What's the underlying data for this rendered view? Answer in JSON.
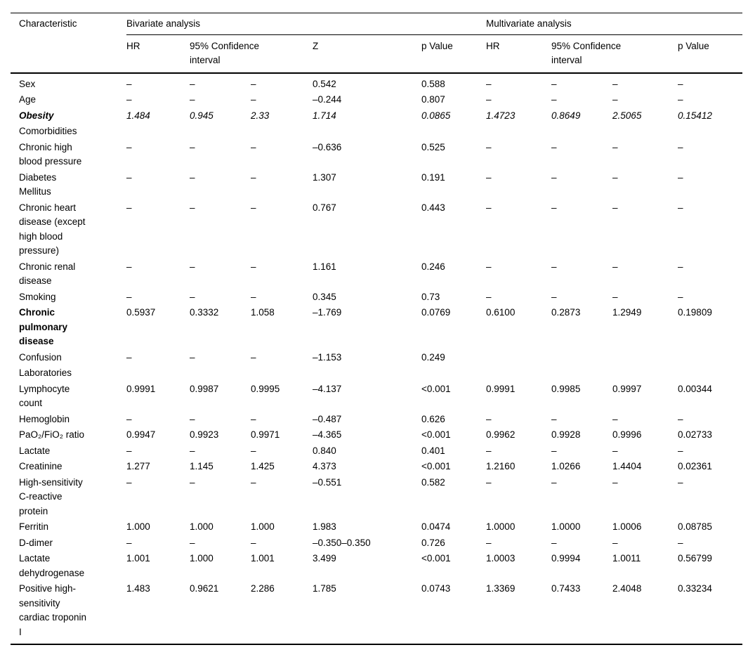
{
  "table": {
    "header": {
      "characteristic": "Characteristic",
      "group_bivariate": "Bivariate analysis",
      "group_multivariate": "Multivariate analysis",
      "sub": {
        "hr_bivariate": "HR",
        "ci_bivariate": "95% Confidence\ninterval",
        "z": "Z",
        "p_bivariate": "p Value",
        "hr_multivariate": "HR",
        "ci_multivariate": "95% Confidence\ninterval",
        "p_multivariate": "p Value"
      }
    },
    "rows": [
      {
        "label": "Sex",
        "style": "normal",
        "cells": [
          "–",
          "–",
          "–",
          "0.542",
          "0.588",
          "–",
          "–",
          "–",
          "–"
        ]
      },
      {
        "label": "Age",
        "style": "normal",
        "cells": [
          "–",
          "–",
          "–",
          "–0.244",
          "0.807",
          "–",
          "–",
          "–",
          "–"
        ]
      },
      {
        "label": "Obesity",
        "style": "bold-italic",
        "cells": [
          "1.484",
          "0.945",
          "2.33",
          "1.714",
          "0.0865",
          "1.4723",
          "0.8649",
          "2.5065",
          "0.15412"
        ]
      },
      {
        "label": "Comorbidities",
        "style": "section",
        "cells": [
          "",
          "",
          "",
          "",
          "",
          "",
          "",
          "",
          ""
        ]
      },
      {
        "label": "Chronic high\nblood pressure",
        "style": "normal",
        "cells": [
          "–",
          "–",
          "–",
          "–0.636",
          "0.525",
          "–",
          "–",
          "–",
          "–"
        ]
      },
      {
        "label": "Diabetes\nMellitus",
        "style": "normal",
        "cells": [
          "–",
          "–",
          "–",
          "1.307",
          "0.191",
          "–",
          "–",
          "–",
          "–"
        ]
      },
      {
        "label": "Chronic heart\ndisease (except\nhigh blood\npressure)",
        "style": "normal",
        "cells": [
          "–",
          "–",
          "–",
          "0.767",
          "0.443",
          "–",
          "–",
          "–",
          "–"
        ]
      },
      {
        "label": "Chronic renal\ndisease",
        "style": "normal",
        "cells": [
          "–",
          "–",
          "–",
          "1.161",
          "0.246",
          "–",
          "–",
          "–",
          "–"
        ]
      },
      {
        "label": "Smoking",
        "style": "normal",
        "cells": [
          "–",
          "–",
          "–",
          "0.345",
          "0.73",
          "–",
          "–",
          "–",
          "–"
        ]
      },
      {
        "label": "Chronic\npulmonary\ndisease",
        "style": "bold",
        "cells": [
          "0.5937",
          "0.3332",
          "1.058",
          "–1.769",
          "0.0769",
          "0.6100",
          "0.2873",
          "1.2949",
          "0.19809"
        ]
      },
      {
        "label": "Confusion",
        "style": "normal",
        "cells": [
          "–",
          "–",
          "–",
          "–1.153",
          "0.249",
          "",
          "",
          "",
          ""
        ]
      },
      {
        "label": "Laboratories",
        "style": "section",
        "cells": [
          "",
          "",
          "",
          "",
          "",
          "",
          "",
          "",
          ""
        ]
      },
      {
        "label": "Lymphocyte\ncount",
        "style": "normal",
        "cells": [
          "0.9991",
          "0.9987",
          "0.9995",
          "–4.137",
          "<0.001",
          "0.9991",
          "0.9985",
          "0.9997",
          "0.00344"
        ]
      },
      {
        "label": "Hemoglobin",
        "style": "normal",
        "cells": [
          "–",
          "–",
          "–",
          "–0.487",
          "0.626",
          "–",
          "–",
          "–",
          "–"
        ]
      },
      {
        "label": "PaO₂/FiO₂ ratio",
        "style": "normal",
        "cells": [
          "0.9947",
          "0.9923",
          "0.9971",
          "–4.365",
          "<0.001",
          "0.9962",
          "0.9928",
          "0.9996",
          "0.02733"
        ]
      },
      {
        "label": "Lactate",
        "style": "normal",
        "cells": [
          "–",
          "–",
          "–",
          "0.840",
          "0.401",
          "–",
          "–",
          "–",
          "–"
        ]
      },
      {
        "label": "Creatinine",
        "style": "normal",
        "cells": [
          "1.277",
          "1.145",
          "1.425",
          "4.373",
          "<0.001",
          "1.2160",
          "1.0266",
          "1.4404",
          "0.02361"
        ]
      },
      {
        "label": "High-sensitivity\nC-reactive\nprotein",
        "style": "normal",
        "cells": [
          "–",
          "–",
          "–",
          "–0.551",
          "0.582",
          "–",
          "–",
          "–",
          "–"
        ]
      },
      {
        "label": "Ferritin",
        "style": "normal",
        "cells": [
          "1.000",
          "1.000",
          "1.000",
          "1.983",
          "0.0474",
          "1.0000",
          "1.0000",
          "1.0006",
          "0.08785"
        ]
      },
      {
        "label": "D-dimer",
        "style": "normal",
        "cells": [
          "–",
          "–",
          "–",
          "–0.350–0.350",
          "0.726",
          "–",
          "–",
          "–",
          "–"
        ]
      },
      {
        "label": "Lactate\ndehydrogenase",
        "style": "normal",
        "cells": [
          "1.001",
          "1.000",
          "1.001",
          "3.499",
          "<0.001",
          "1.0003",
          "0.9994",
          "1.0011",
          "0.56799"
        ]
      },
      {
        "label": "Positive high-\nsensitivity\ncardiac troponin\nI",
        "style": "normal",
        "cells": [
          "1.483",
          "0.9621",
          "2.286",
          "1.785",
          "0.0743",
          "1.3369",
          "0.7433",
          "2.4048",
          "0.33234"
        ]
      }
    ]
  }
}
